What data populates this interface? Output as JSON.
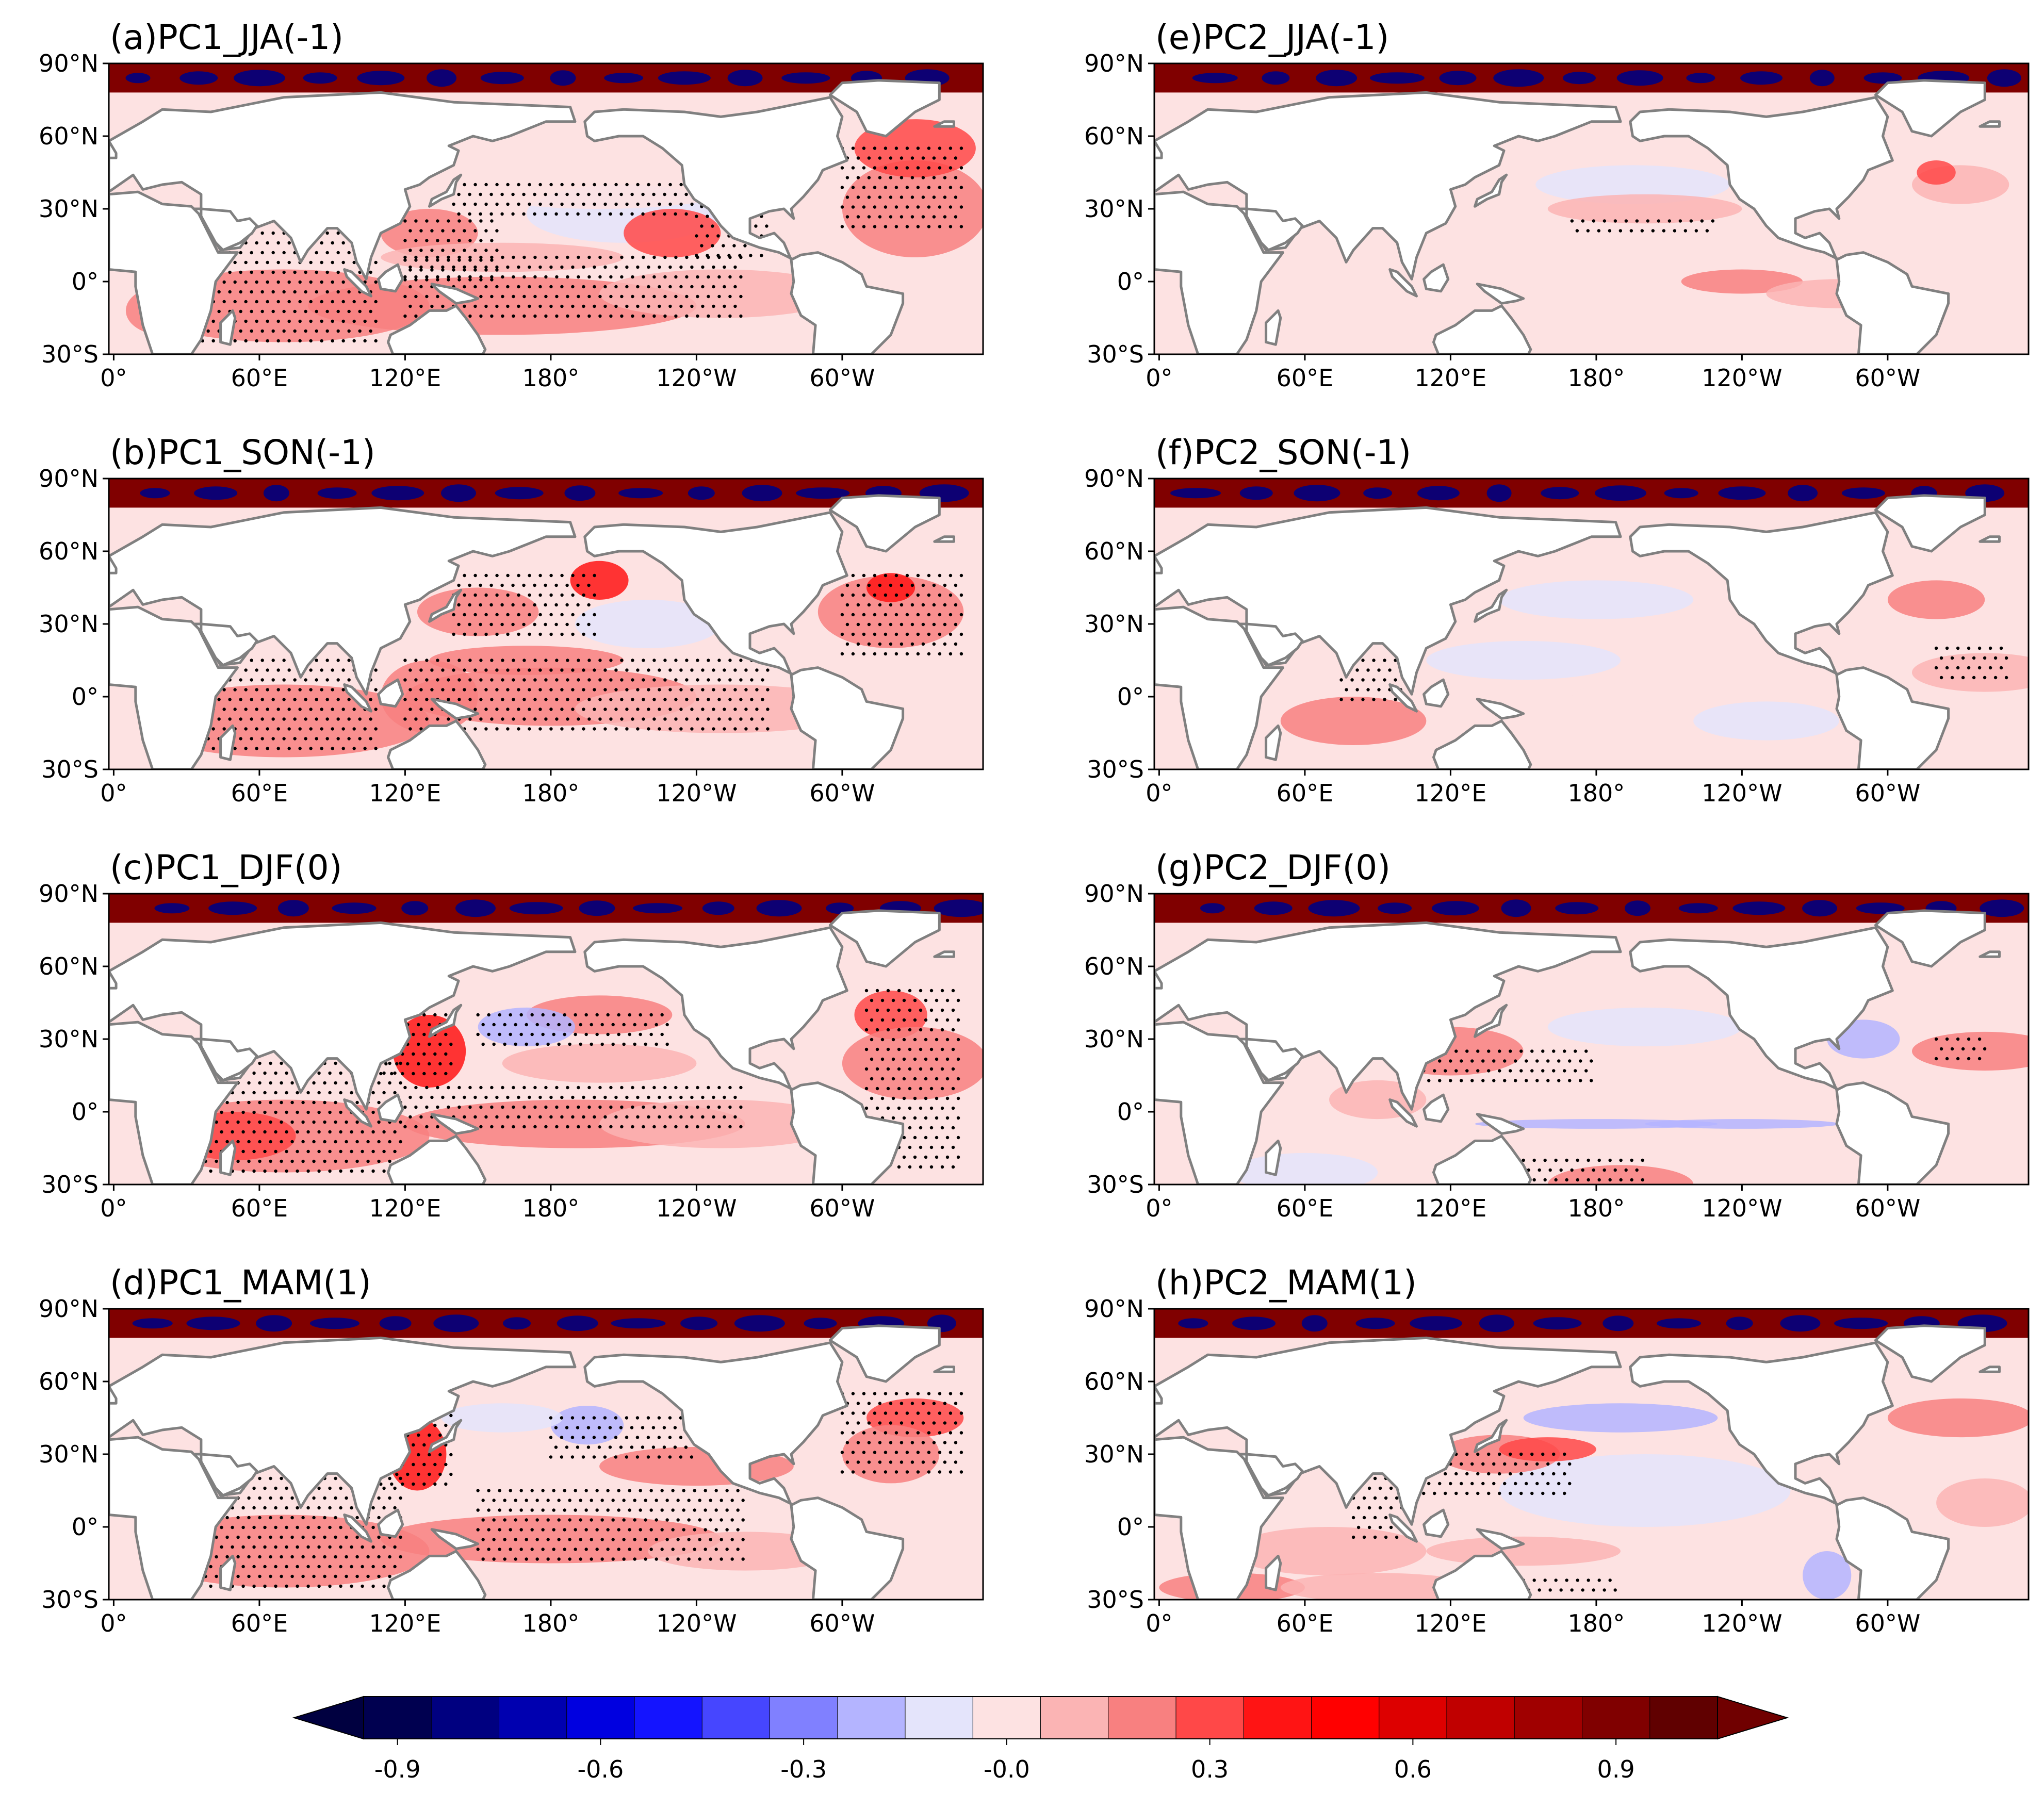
{
  "figure": {
    "panels": [
      {
        "id": "a",
        "title": "(a)PC1_JJA(-1)",
        "pc": "PC1",
        "season": "JJA(-1)"
      },
      {
        "id": "b",
        "title": "(b)PC1_SON(-1)",
        "pc": "PC1",
        "season": "SON(-1)"
      },
      {
        "id": "c",
        "title": "(c)PC1_DJF(0)",
        "pc": "PC1",
        "season": "DJF(0)"
      },
      {
        "id": "d",
        "title": "(d)PC1_MAM(1)",
        "pc": "PC1",
        "season": "MAM(1)"
      },
      {
        "id": "e",
        "title": "(e)PC2_JJA(-1)",
        "pc": "PC2",
        "season": "JJA(-1)"
      },
      {
        "id": "f",
        "title": "(f)PC2_SON(-1)",
        "pc": "PC2",
        "season": "SON(-1)"
      },
      {
        "id": "g",
        "title": "(g)PC2_DJF(0)",
        "pc": "PC2",
        "season": "DJF(0)"
      },
      {
        "id": "h",
        "title": "(h)PC2_MAM(1)",
        "pc": "PC2",
        "season": "MAM(1)"
      }
    ],
    "lat_tick_labels": [
      "90°N",
      "60°N",
      "30°N",
      "0°",
      "30°S"
    ],
    "lon_tick_labels_left": [
      "0°",
      "60°E",
      "120°E",
      "180°",
      "120°W",
      "60°W"
    ],
    "lon_tick_labels_right": [
      "0°",
      "60°E",
      "120°E",
      "180°",
      "120°W",
      "60°W"
    ],
    "colorbar": {
      "tick_labels": [
        "-0.9",
        "-0.6",
        "-0.3",
        "-0.0",
        "0.3",
        "0.6",
        "0.9"
      ],
      "tick_values": [
        -0.9,
        -0.6,
        -0.3,
        0.0,
        0.3,
        0.6,
        0.9
      ],
      "range": [
        -1.0,
        1.0
      ],
      "levels": 20,
      "extend": "both",
      "colors": [
        "#000050",
        "#000080",
        "#0000b0",
        "#0000e0",
        "#1414ff",
        "#4646ff",
        "#8080ff",
        "#b4b4ff",
        "#e4e4fb",
        "#fde2e2",
        "#fbb4b4",
        "#f88080",
        "#ff4848",
        "#ff1414",
        "#ff0000",
        "#dd0000",
        "#c00000",
        "#a00000",
        "#800000",
        "#600000"
      ],
      "under_color": "#000040",
      "over_color": "#700000"
    },
    "colors": {
      "coastline": "#808080",
      "land": "#ffffff",
      "stipple": "#000000"
    }
  }
}
